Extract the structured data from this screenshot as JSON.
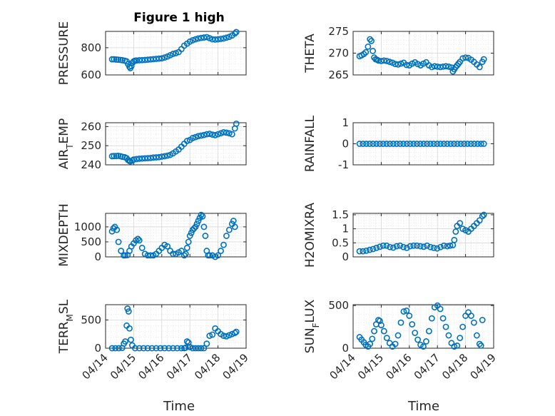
{
  "figure": {
    "title": "Figure 1 high",
    "marker_color": "#0072BD",
    "grid": true,
    "x_tick_labels": [
      "04/14",
      "04/15",
      "04/16",
      "04/17",
      "04/18",
      "04/19"
    ],
    "xlabel": "Time"
  },
  "chart_data": [
    {
      "type": "scatter",
      "ylabel": "PRESSURE",
      "xlim": [
        0,
        5
      ],
      "ylim": [
        600,
        920
      ],
      "yticks": [
        600,
        800
      ],
      "series": [
        {
          "x": [
            0.23,
            0.3,
            0.38,
            0.45,
            0.53,
            0.6,
            0.68,
            0.75,
            0.8,
            0.85,
            0.88,
            0.92,
            0.96,
            1.0,
            1.05,
            1.1,
            1.2,
            1.3,
            1.4,
            1.5,
            1.6,
            1.7,
            1.8,
            1.9,
            2.0,
            2.1,
            2.2,
            2.3,
            2.4,
            2.5,
            2.6,
            2.7,
            2.8,
            2.9,
            3.0,
            3.1,
            3.2,
            3.3,
            3.4,
            3.5,
            3.6,
            3.7,
            3.8,
            3.9,
            4.0,
            4.1,
            4.2,
            4.3,
            4.4,
            4.5,
            4.6,
            4.65
          ],
          "y": [
            715,
            715,
            713,
            712,
            710,
            708,
            705,
            700,
            680,
            660,
            650,
            665,
            690,
            700,
            705,
            706,
            708,
            709,
            710,
            712,
            714,
            716,
            718,
            720,
            722,
            728,
            735,
            745,
            755,
            760,
            768,
            790,
            815,
            830,
            845,
            855,
            862,
            868,
            872,
            875,
            878,
            870,
            862,
            860,
            862,
            865,
            868,
            874,
            880,
            890,
            905,
            915
          ]
        }
      ]
    },
    {
      "type": "scatter",
      "ylabel": "THETA",
      "xlim": [
        0,
        5
      ],
      "ylim": [
        265,
        275
      ],
      "yticks": [
        265,
        270,
        275
      ],
      "series": [
        {
          "x": [
            0.23,
            0.3,
            0.38,
            0.45,
            0.53,
            0.6,
            0.65,
            0.7,
            0.75,
            0.8,
            0.85,
            0.9,
            1.0,
            1.1,
            1.2,
            1.3,
            1.4,
            1.5,
            1.6,
            1.7,
            1.8,
            1.9,
            2.0,
            2.1,
            2.2,
            2.3,
            2.4,
            2.5,
            2.6,
            2.7,
            2.8,
            2.9,
            3.0,
            3.1,
            3.2,
            3.3,
            3.4,
            3.5,
            3.55,
            3.6,
            3.65,
            3.7,
            3.75,
            3.8,
            3.9,
            4.0,
            4.1,
            4.2,
            4.3,
            4.4,
            4.5,
            4.6,
            4.65
          ],
          "y": [
            269.3,
            269.5,
            269.8,
            270.2,
            271.5,
            273.2,
            272.8,
            270.5,
            269.0,
            268.6,
            268.5,
            268.3,
            268.2,
            268.3,
            268.2,
            268.0,
            267.8,
            267.5,
            267.4,
            267.6,
            267.8,
            267.3,
            267.2,
            267.6,
            267.9,
            267.5,
            267.2,
            267.6,
            267.9,
            267.2,
            266.8,
            267.0,
            266.9,
            266.8,
            266.9,
            267.0,
            266.9,
            266.7,
            265.8,
            266.3,
            266.8,
            267.2,
            267.6,
            268.0,
            268.8,
            269.0,
            268.9,
            268.5,
            268.0,
            267.4,
            266.8,
            268.0,
            268.6
          ]
        }
      ]
    },
    {
      "type": "scatter",
      "ylabel": "AIR_TEMP",
      "xlim": [
        0,
        5
      ],
      "ylim": [
        240,
        262
      ],
      "yticks": [
        240,
        250,
        260
      ],
      "series": [
        {
          "x": [
            0.23,
            0.3,
            0.38,
            0.45,
            0.53,
            0.6,
            0.68,
            0.75,
            0.8,
            0.85,
            0.88,
            0.95,
            1.0,
            1.1,
            1.2,
            1.3,
            1.4,
            1.5,
            1.6,
            1.7,
            1.8,
            1.9,
            2.0,
            2.1,
            2.2,
            2.3,
            2.4,
            2.5,
            2.6,
            2.7,
            2.8,
            2.9,
            3.0,
            3.1,
            3.2,
            3.3,
            3.4,
            3.5,
            3.6,
            3.7,
            3.8,
            3.9,
            4.0,
            4.1,
            4.2,
            4.3,
            4.4,
            4.5,
            4.6,
            4.65
          ],
          "y": [
            244.5,
            244.6,
            244.6,
            244.7,
            244.5,
            244.2,
            244.0,
            243.5,
            242.5,
            242.0,
            241.8,
            242.2,
            242.8,
            243.0,
            243.2,
            243.3,
            243.4,
            243.5,
            243.6,
            243.8,
            243.9,
            244.0,
            244.3,
            244.5,
            244.8,
            245.2,
            246.0,
            247.0,
            248.0,
            249.5,
            251.0,
            252.5,
            253.0,
            254.0,
            254.5,
            255.0,
            255.3,
            255.6,
            256.0,
            256.2,
            255.8,
            255.5,
            256.0,
            256.5,
            257.0,
            256.8,
            256.5,
            256.0,
            259.0,
            261.5
          ]
        }
      ]
    },
    {
      "type": "scatter",
      "ylabel": "RAINFALL",
      "xlim": [
        0,
        5
      ],
      "ylim": [
        -1,
        1
      ],
      "yticks": [
        -1,
        0,
        1
      ],
      "series": [
        {
          "x": [
            0.23,
            0.35,
            0.47,
            0.59,
            0.71,
            0.83,
            0.95,
            1.07,
            1.19,
            1.31,
            1.43,
            1.55,
            1.67,
            1.79,
            1.91,
            2.03,
            2.15,
            2.27,
            2.39,
            2.51,
            2.63,
            2.75,
            2.87,
            2.99,
            3.11,
            3.23,
            3.35,
            3.47,
            3.59,
            3.71,
            3.83,
            3.95,
            4.07,
            4.19,
            4.31,
            4.43,
            4.55,
            4.65
          ],
          "y": [
            0,
            0,
            0,
            0,
            0,
            0,
            0,
            0,
            0,
            0,
            0,
            0,
            0,
            0,
            0,
            0,
            0,
            0,
            0,
            0,
            0,
            0,
            0,
            0,
            0,
            0,
            0,
            0,
            0,
            0,
            0,
            0,
            0,
            0,
            0,
            0,
            0,
            0
          ]
        }
      ]
    },
    {
      "type": "scatter",
      "ylabel": "MIXDEPTH",
      "xlim": [
        0,
        5
      ],
      "ylim": [
        0,
        1450
      ],
      "yticks": [
        0,
        500,
        1000
      ],
      "series": [
        {
          "x": [
            0.23,
            0.28,
            0.33,
            0.4,
            0.46,
            0.55,
            0.65,
            0.7,
            0.78,
            0.85,
            0.92,
            1.0,
            1.08,
            1.15,
            1.2,
            1.3,
            1.4,
            1.5,
            1.6,
            1.7,
            1.8,
            1.9,
            2.0,
            2.1,
            2.2,
            2.3,
            2.4,
            2.5,
            2.6,
            2.7,
            2.8,
            2.85,
            2.9,
            2.95,
            3.0,
            3.05,
            3.1,
            3.15,
            3.2,
            3.25,
            3.3,
            3.35,
            3.4,
            3.45,
            3.5,
            3.55,
            3.6,
            3.65,
            3.7,
            3.8,
            3.9,
            4.0,
            4.1,
            4.2,
            4.3,
            4.4,
            4.5,
            4.55,
            4.6
          ],
          "y": [
            850,
            950,
            1000,
            900,
            500,
            200,
            50,
            50,
            60,
            200,
            350,
            450,
            550,
            600,
            550,
            300,
            100,
            50,
            50,
            50,
            100,
            200,
            300,
            400,
            350,
            200,
            100,
            100,
            150,
            200,
            50,
            100,
            300,
            500,
            700,
            800,
            900,
            950,
            1000,
            1100,
            1200,
            1300,
            1400,
            1350,
            1000,
            700,
            200,
            50,
            50,
            50,
            0,
            50,
            200,
            400,
            700,
            900,
            1100,
            1200,
            1000
          ]
        }
      ]
    },
    {
      "type": "scatter",
      "ylabel": "H2OMIXRA",
      "xlim": [
        0,
        5
      ],
      "ylim": [
        0,
        1.55
      ],
      "yticks": [
        0,
        0.5,
        1,
        1.5
      ],
      "series": [
        {
          "x": [
            0.23,
            0.35,
            0.47,
            0.59,
            0.71,
            0.83,
            0.95,
            1.07,
            1.19,
            1.31,
            1.43,
            1.55,
            1.67,
            1.79,
            1.91,
            2.03,
            2.15,
            2.27,
            2.39,
            2.51,
            2.63,
            2.75,
            2.87,
            2.99,
            3.11,
            3.23,
            3.35,
            3.45,
            3.55,
            3.6,
            3.65,
            3.7,
            3.8,
            3.9,
            4.0,
            4.1,
            4.2,
            4.3,
            4.4,
            4.5,
            4.6,
            4.65
          ],
          "y": [
            0.2,
            0.2,
            0.22,
            0.25,
            0.28,
            0.32,
            0.36,
            0.4,
            0.4,
            0.35,
            0.33,
            0.38,
            0.4,
            0.35,
            0.32,
            0.38,
            0.4,
            0.4,
            0.38,
            0.36,
            0.4,
            0.35,
            0.32,
            0.3,
            0.35,
            0.4,
            0.38,
            0.4,
            0.42,
            0.6,
            0.9,
            1.1,
            1.2,
            1.0,
            0.95,
            0.9,
            1.0,
            1.1,
            1.2,
            1.3,
            1.45,
            1.5
          ]
        }
      ]
    },
    {
      "type": "scatter",
      "ylabel": "TERR_MSL",
      "xlim": [
        0,
        5
      ],
      "ylim": [
        0,
        770
      ],
      "yticks": [
        0,
        500
      ],
      "series": [
        {
          "x": [
            0.23,
            0.35,
            0.47,
            0.59,
            0.65,
            0.7,
            0.75,
            0.78,
            0.82,
            0.85,
            0.9,
            0.95,
            1.05,
            1.2,
            1.35,
            1.5,
            1.65,
            1.8,
            1.95,
            2.1,
            2.25,
            2.4,
            2.55,
            2.7,
            2.8,
            2.85,
            2.9,
            2.95,
            3.0,
            3.1,
            3.2,
            3.3,
            3.4,
            3.5,
            3.6,
            3.7,
            3.8,
            3.9,
            4.0,
            4.1,
            4.2,
            4.3,
            4.4,
            4.5,
            4.6,
            4.65
          ],
          "y": [
            0,
            0,
            0,
            5,
            80,
            120,
            400,
            700,
            650,
            350,
            150,
            50,
            0,
            0,
            0,
            0,
            0,
            0,
            0,
            0,
            0,
            0,
            0,
            0,
            0,
            10,
            120,
            100,
            20,
            0,
            0,
            0,
            0,
            0,
            80,
            220,
            240,
            350,
            300,
            250,
            220,
            210,
            230,
            250,
            270,
            290
          ]
        }
      ]
    },
    {
      "type": "scatter",
      "ylabel": "SUN_FLUX",
      "xlim": [
        0,
        5
      ],
      "ylim": [
        0,
        510
      ],
      "yticks": [
        0,
        500
      ],
      "series": [
        {
          "x": [
            0.23,
            0.3,
            0.38,
            0.45,
            0.53,
            0.6,
            0.68,
            0.75,
            0.82,
            0.9,
            0.95,
            1.0,
            1.1,
            1.2,
            1.3,
            1.4,
            1.5,
            1.6,
            1.7,
            1.8,
            1.9,
            2.0,
            2.1,
            2.2,
            2.3,
            2.4,
            2.5,
            2.6,
            2.7,
            2.8,
            2.9,
            3.0,
            3.1,
            3.2,
            3.3,
            3.4,
            3.5,
            3.6,
            3.7,
            3.8,
            3.9,
            4.0,
            4.1,
            4.2,
            4.3,
            4.4,
            4.5,
            4.55,
            4.6
          ],
          "y": [
            130,
            100,
            70,
            40,
            20,
            50,
            110,
            200,
            280,
            330,
            320,
            270,
            200,
            120,
            60,
            20,
            50,
            150,
            300,
            430,
            440,
            380,
            280,
            180,
            100,
            40,
            20,
            80,
            200,
            350,
            480,
            500,
            460,
            350,
            250,
            150,
            60,
            20,
            30,
            120,
            250,
            380,
            420,
            380,
            300,
            150,
            50,
            30,
            330
          ]
        }
      ]
    }
  ]
}
